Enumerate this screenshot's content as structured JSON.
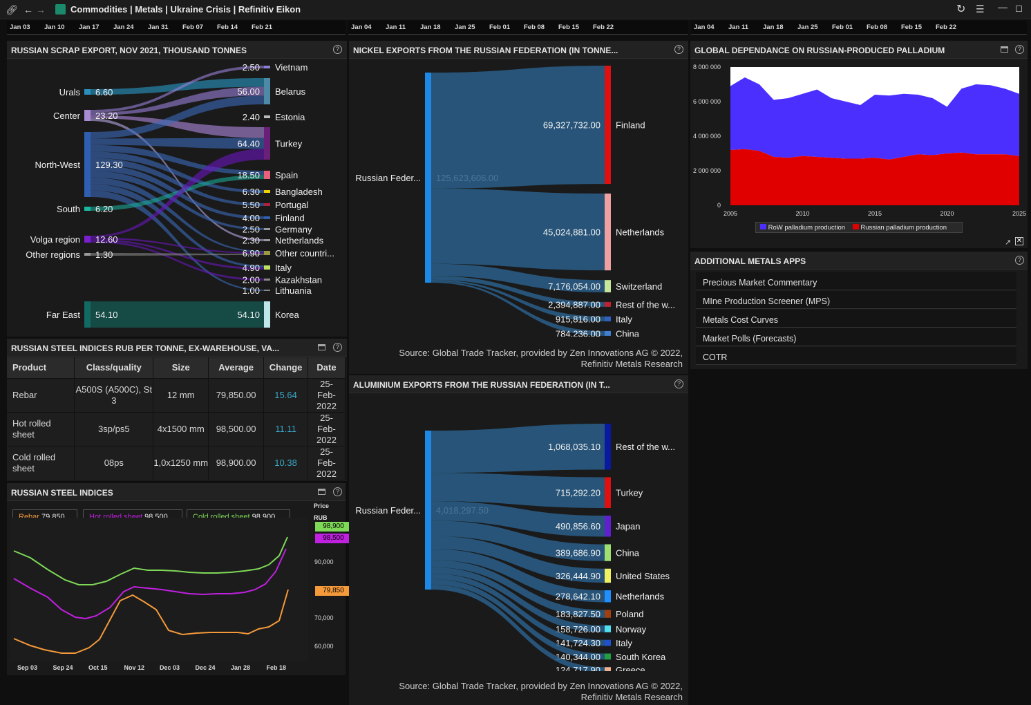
{
  "window": {
    "title": "Commodities | Metals | Ukraine Crisis | Refinitiv Eikon"
  },
  "date_strips": [
    [
      "Jan 03",
      "Jan 10",
      "Jan 17",
      "Jan 24",
      "Jan 31",
      "Feb 07",
      "Feb 14",
      "Feb 21"
    ],
    [
      "Jan 04",
      "Jan 11",
      "Jan 18",
      "Jan 25",
      "Feb 01",
      "Feb 08",
      "Feb 15",
      "Feb 22"
    ],
    [
      "Jan 04",
      "Jan 11",
      "Jan 18",
      "Jan 25",
      "Feb 01",
      "Feb 08",
      "Feb 15",
      "Feb 22"
    ]
  ],
  "scrap": {
    "title": "RUSSIAN SCRAP EXPORT, NOV 2021, THOUSAND TONNES",
    "sources": [
      {
        "name": "Urals",
        "value": "6.60",
        "color": "#2a8fbf"
      },
      {
        "name": "Center",
        "value": "23.20",
        "color": "#a78bd4"
      },
      {
        "name": "North-West",
        "value": "129.30",
        "color": "#2f5fb0"
      },
      {
        "name": "South",
        "value": "6.20",
        "color": "#17b7a0"
      },
      {
        "name": "Volga region",
        "value": "12.60",
        "color": "#7a1fcf"
      },
      {
        "name": "Other regions",
        "value": "1.30",
        "color": "#999999"
      },
      {
        "name": "Far East",
        "value": "54.10",
        "color": "#126b63"
      }
    ],
    "targets": [
      {
        "name": "Vietnam",
        "value": "2.50",
        "color": "#8b7fd0"
      },
      {
        "name": "Belarus",
        "value": "56.00",
        "color": "#4d8aa8"
      },
      {
        "name": "Estonia",
        "value": "2.40",
        "color": "#bbbbbb"
      },
      {
        "name": "Turkey",
        "value": "64.40",
        "color": "#6a1f78"
      },
      {
        "name": "Spain",
        "value": "18.50",
        "color": "#e8607a"
      },
      {
        "name": "Bangladesh",
        "value": "6.30",
        "color": "#f0d000"
      },
      {
        "name": "Portugal",
        "value": "5.50",
        "color": "#b02040"
      },
      {
        "name": "Finland",
        "value": "4.00",
        "color": "#2f5fb0"
      },
      {
        "name": "Germany",
        "value": "2.50",
        "color": "#999999"
      },
      {
        "name": "Netherlands",
        "value": "2.30",
        "color": "#999999"
      },
      {
        "name": "Other countri...",
        "value": "6.90",
        "color": "#9a9a40"
      },
      {
        "name": "Italy",
        "value": "4.90",
        "color": "#bde060"
      },
      {
        "name": "Kazakhstan",
        "value": "2.00",
        "color": "#888888"
      },
      {
        "name": "Lithuania",
        "value": "1.00",
        "color": "#888888"
      },
      {
        "name": "Korea",
        "value": "54.10",
        "color": "#bfe8e8"
      }
    ]
  },
  "nickel": {
    "title": "NICKEL EXPORTS FROM THE RUSSIAN FEDERATION (IN TONNE...",
    "source_name": "Russian Feder...",
    "source_value": "125,623,606.00",
    "targets": [
      {
        "name": "Finland",
        "value": "69,327,732.00",
        "color": "#e01010"
      },
      {
        "name": "Netherlands",
        "value": "45,024,881.00",
        "color": "#f0a0a0"
      },
      {
        "name": "Switzerland",
        "value": "7,176,054.00",
        "color": "#c6e89a"
      },
      {
        "name": "Rest of the w...",
        "value": "2,394,887.00",
        "color": "#c02030"
      },
      {
        "name": "Italy",
        "value": "915,816.00",
        "color": "#3060c0"
      },
      {
        "name": "China",
        "value": "784,236.00",
        "color": "#4080d0"
      }
    ],
    "source_note": [
      "Source: Global Trade Tracker, provided by Zen Innovations AG © 2022,",
      "Refinitiv Metals Research"
    ]
  },
  "aluminium": {
    "title": "ALUMINIUM EXPORTS FROM THE RUSSIAN FEDERATION (IN T...",
    "source_name": "Russian Feder...",
    "source_value": "4,018,297.50",
    "targets": [
      {
        "name": "Rest of the w...",
        "value": "1,068,035.10",
        "color": "#0a1aa0"
      },
      {
        "name": "Turkey",
        "value": "715,292.20",
        "color": "#e01010"
      },
      {
        "name": "Japan",
        "value": "490,856.60",
        "color": "#6020d0"
      },
      {
        "name": "China",
        "value": "389,686.90",
        "color": "#a0e070"
      },
      {
        "name": "United States",
        "value": "326,444.90",
        "color": "#f0f060"
      },
      {
        "name": "Netherlands",
        "value": "278,642.10",
        "color": "#1e90ff"
      },
      {
        "name": "Poland",
        "value": "183,827.50",
        "color": "#a04010"
      },
      {
        "name": "Norway",
        "value": "158,726.00",
        "color": "#50e0f0"
      },
      {
        "name": "Italy",
        "value": "141,724.30",
        "color": "#2050d0"
      },
      {
        "name": "South Korea",
        "value": "140,344.00",
        "color": "#20a040"
      },
      {
        "name": "Greece",
        "value": "124,717.90",
        "color": "#f0b090"
      }
    ],
    "source_note": [
      "Source: Global Trade Tracker, provided by Zen Innovations AG © 2022,",
      "Refinitiv Metals Research"
    ]
  },
  "palladium": {
    "title": "GLOBAL DEPENDANCE ON RUSSIAN-PRODUCED PALLADIUM",
    "legend": [
      {
        "name": "RoW palladium production",
        "color": "#4a2fff"
      },
      {
        "name": "Russian palladium production",
        "color": "#e00000"
      }
    ],
    "y_ticks": [
      "8 000 000",
      "6 000 000",
      "4 000 000",
      "2 000 000",
      "0"
    ],
    "x_ticks": [
      "2005",
      "2010",
      "2015",
      "2020",
      "2025"
    ]
  },
  "chart_data": {
    "type": "area",
    "x": [
      2005,
      2006,
      2007,
      2008,
      2009,
      2010,
      2011,
      2012,
      2013,
      2014,
      2015,
      2016,
      2017,
      2018,
      2019,
      2020,
      2021,
      2022,
      2023,
      2024,
      2025
    ],
    "series": [
      {
        "name": "Russian palladium production",
        "values": [
          3200000,
          3250000,
          3150000,
          2800000,
          2750000,
          2850000,
          2800000,
          2750000,
          2700000,
          2700000,
          2750000,
          2650000,
          2800000,
          2950000,
          2900000,
          3000000,
          3050000,
          2950000,
          2950000,
          2950000,
          2850000
        ]
      },
      {
        "name": "RoW palladium production",
        "values": [
          3700000,
          4150000,
          3850000,
          3300000,
          3450000,
          3600000,
          3900000,
          3450000,
          3300000,
          3100000,
          3650000,
          3700000,
          3650000,
          3450000,
          3300000,
          2700000,
          3700000,
          4050000,
          4000000,
          3800000,
          3600000
        ]
      }
    ],
    "ylim": [
      0,
      8000000
    ],
    "xlim": [
      2005,
      2025
    ],
    "stacked": true
  },
  "steel_table": {
    "title": "RUSSIAN STEEL INDICES RUB PER TONNE, EX-WAREHOUSE, VA...",
    "headers": [
      "Product",
      "Class/quality",
      "Size",
      "Average",
      "Change",
      "Date"
    ],
    "rows": [
      [
        "Rebar",
        "A500S (A500C), St 3",
        "12 mm",
        "79,850.00",
        "15.64",
        "25-Feb-2022"
      ],
      [
        "Hot rolled sheet",
        "3sp/ps5",
        "4x1500 mm",
        "98,500.00",
        "11.11",
        "25-Feb-2022"
      ],
      [
        "Cold rolled sheet",
        "08ps",
        "1,0x1250 mm",
        "98,900.00",
        "10.38",
        "25-Feb-2022"
      ]
    ]
  },
  "steel_chart": {
    "title": "RUSSIAN STEEL INDICES",
    "legend": [
      {
        "name": "Rebar",
        "value": "79,850",
        "color": "#f59a3a"
      },
      {
        "name": "Hot rolled sheet",
        "value": "98,500",
        "color": "#c020e0"
      },
      {
        "name": "Cold rolled sheet",
        "value": "98,900",
        "color": "#7ed957"
      }
    ],
    "price_label": "Price",
    "unit_label": "RUB",
    "y_ticks": [
      "90,000",
      "70,000",
      "60,000"
    ],
    "x_ticks": [
      "Sep 03",
      "Sep 24",
      "Oct 15",
      "Nov 12",
      "Dec 03",
      "Dec 24",
      "Jan 28",
      "Feb 18"
    ],
    "tags": [
      "98,900",
      "98,500",
      "79,850"
    ]
  },
  "apps": {
    "title": "ADDITIONAL METALS APPS",
    "items": [
      "Precious Market Commentary",
      "MIne Production Screener (MPS)",
      "Metals Cost Curves",
      "Market Polls (Forecasts)",
      "COTR"
    ]
  }
}
